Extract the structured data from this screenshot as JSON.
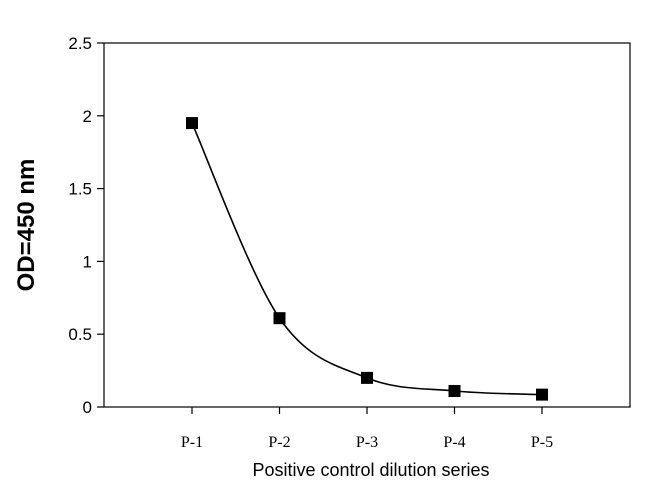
{
  "chart_data": {
    "type": "scatter",
    "categories": [
      "P-1",
      "P-2",
      "P-3",
      "P-4",
      "P-5"
    ],
    "series": [
      {
        "values": [
          1.95,
          0.61,
          0.2,
          0.11,
          0.085
        ],
        "marker": "square",
        "color": "#000000",
        "fit_line": "smooth"
      }
    ],
    "xlabel": "Positive control dilution series",
    "ylabel": "OD=450 nm",
    "ylim": [
      0,
      2.5
    ],
    "yticks": [
      "0",
      "0.5",
      "1",
      "1.5",
      "2",
      "2.5"
    ],
    "grid": false,
    "legend": "none"
  }
}
